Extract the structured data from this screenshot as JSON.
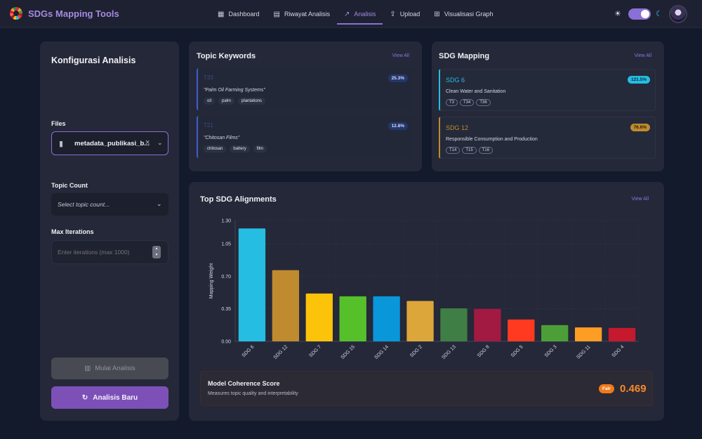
{
  "app": {
    "title": "SDGs Mapping Tools"
  },
  "nav": [
    {
      "label": "Dashboard",
      "icon": "dashboard-icon",
      "active": false
    },
    {
      "label": "Riwayat Analisis",
      "icon": "history-icon",
      "active": false
    },
    {
      "label": "Analisis",
      "icon": "trend-icon",
      "active": true
    },
    {
      "label": "Upload",
      "icon": "upload-icon",
      "active": false
    },
    {
      "label": "Visualisasi Graph",
      "icon": "graph-icon",
      "active": false
    }
  ],
  "config": {
    "title": "Konfigurasi Analisis",
    "files_label": "Files",
    "file_selected": "metadata_publikasi_b...",
    "topic_count_label": "Topic Count",
    "topic_count_placeholder": "Select topic count...",
    "max_iter_label": "Max Iterations",
    "max_iter_placeholder": "Enter iterations (max 1000)",
    "run_label": "Mulai Analisis",
    "new_label": "Analisis Baru"
  },
  "topics": {
    "title": "Topic Keywords",
    "view_all": "View All",
    "items": [
      {
        "id": "T33",
        "pct": "25.3%",
        "phrase": "\"Palm Oil Farming Systems\"",
        "keywords": [
          "oil",
          "palm",
          "plantations"
        ]
      },
      {
        "id": "T21",
        "pct": "12.8%",
        "phrase": "\"Chitosan Films\"",
        "keywords": [
          "chitosan",
          "battery",
          "film"
        ]
      }
    ]
  },
  "mapping": {
    "title": "SDG Mapping",
    "view_all": "View All",
    "items": [
      {
        "name": "SDG 6",
        "pct": "121.5%",
        "desc": "Clean Water and Sanitation",
        "topics": [
          "T3",
          "T34",
          "T36"
        ],
        "color": "#26bde2"
      },
      {
        "name": "SDG 12",
        "pct": "76.6%",
        "desc": "Responsible Consumption and Production",
        "topics": [
          "T14",
          "T15",
          "T16"
        ],
        "color": "#bf8b2e"
      }
    ]
  },
  "alignments": {
    "title": "Top SDG Alignments",
    "view_all": "View All"
  },
  "chart_data": {
    "type": "bar",
    "ylabel": "Mapping Weight",
    "xlabel": "",
    "ylim": [
      0,
      1.3
    ],
    "yticks": [
      "0.00",
      "0.35",
      "0.70",
      "1.05",
      "1.30"
    ],
    "ytick_values": [
      0,
      0.35,
      0.7,
      1.05,
      1.3
    ],
    "categories": [
      "SDG 6",
      "SDG 12",
      "SDG 7",
      "SDG 15",
      "SDG 14",
      "SDG 2",
      "SDG 13",
      "SDG 8",
      "SDG 5",
      "SDG 3",
      "SDG 11",
      "SDG 4"
    ],
    "values": [
      1.215,
      0.766,
      0.515,
      0.485,
      0.485,
      0.435,
      0.355,
      0.35,
      0.235,
      0.175,
      0.15,
      0.145
    ],
    "colors": [
      "#26bde2",
      "#bf8b2e",
      "#fcc30b",
      "#56c02b",
      "#0a97d9",
      "#dda63a",
      "#3f7e44",
      "#a21942",
      "#ff3a21",
      "#4c9f38",
      "#fd9d24",
      "#c5192d"
    ],
    "grid": true
  },
  "score": {
    "title": "Model Coherence Score",
    "subtitle": "Measures topic quality and interpretability",
    "badge": "Fair",
    "value": "0.469"
  }
}
